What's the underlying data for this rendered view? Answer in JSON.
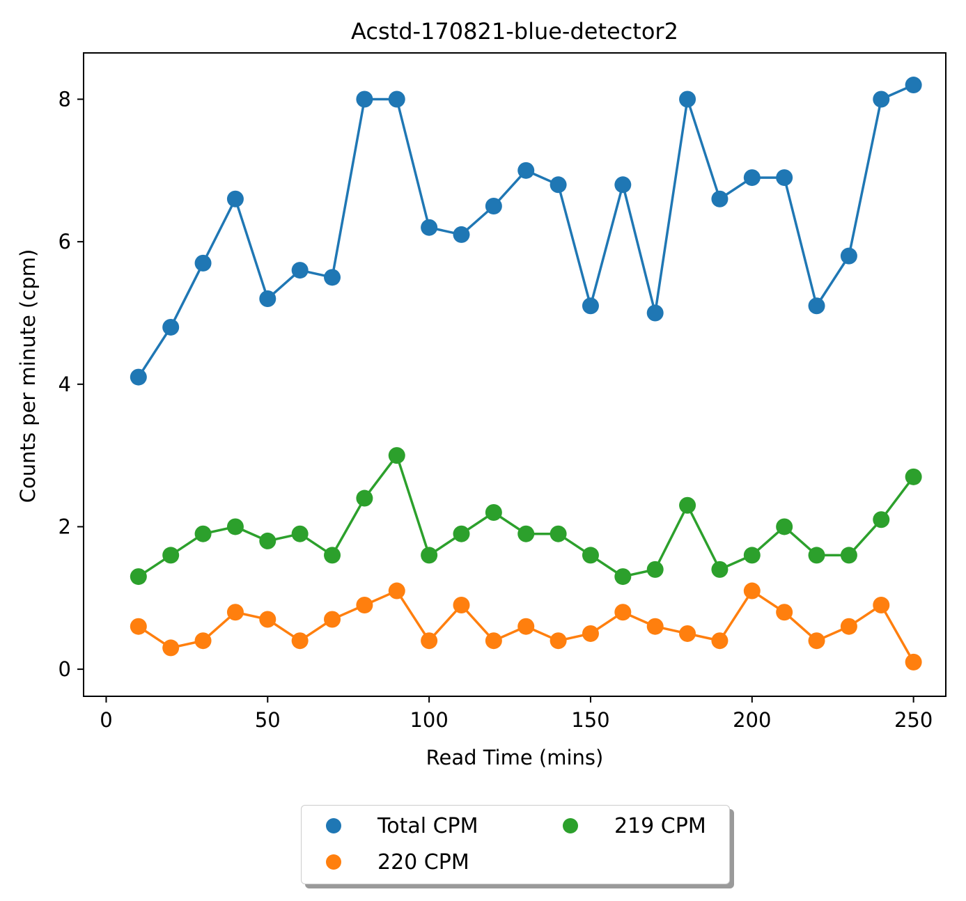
{
  "chart_data": {
    "type": "line",
    "title": "Acstd-170821-blue-detector2",
    "xlabel": "Read Time (mins)",
    "ylabel": "Counts per minute (cpm)",
    "xlim": [
      -7,
      260
    ],
    "ylim": [
      -0.38,
      8.65
    ],
    "xticks": [
      0,
      50,
      100,
      150,
      200,
      250
    ],
    "yticks": [
      0,
      2,
      4,
      6,
      8
    ],
    "grid": false,
    "legend_position": "bottom-center, below plot",
    "x": [
      10,
      20,
      30,
      40,
      50,
      60,
      70,
      80,
      90,
      100,
      110,
      120,
      130,
      140,
      150,
      160,
      170,
      180,
      190,
      200,
      210,
      220,
      230,
      240,
      250
    ],
    "series": [
      {
        "name": "Total CPM",
        "color": "#1f77b4",
        "values": [
          4.1,
          4.8,
          5.7,
          6.6,
          5.2,
          5.6,
          5.5,
          8.0,
          8.0,
          6.2,
          6.1,
          6.5,
          7.0,
          6.8,
          5.1,
          6.8,
          5.0,
          8.0,
          6.6,
          6.9,
          6.9,
          5.1,
          5.8,
          8.0,
          8.2
        ]
      },
      {
        "name": "220 CPM",
        "color": "#ff7f0e",
        "values": [
          0.6,
          0.3,
          0.4,
          0.8,
          0.7,
          0.4,
          0.7,
          0.9,
          1.1,
          0.4,
          0.9,
          0.4,
          0.6,
          0.4,
          0.5,
          0.8,
          0.6,
          0.5,
          0.4,
          1.1,
          0.8,
          0.4,
          0.6,
          0.9,
          0.1
        ]
      },
      {
        "name": "219 CPM",
        "color": "#2ca02c",
        "values": [
          1.3,
          1.6,
          1.9,
          2.0,
          1.8,
          1.9,
          1.6,
          2.4,
          3.0,
          1.6,
          1.9,
          2.2,
          1.9,
          1.9,
          1.6,
          1.3,
          1.4,
          2.3,
          1.4,
          1.6,
          2.0,
          1.6,
          1.6,
          2.1,
          2.7
        ]
      }
    ],
    "legend_order": [
      "Total CPM",
      "220 CPM",
      "219 CPM"
    ]
  }
}
